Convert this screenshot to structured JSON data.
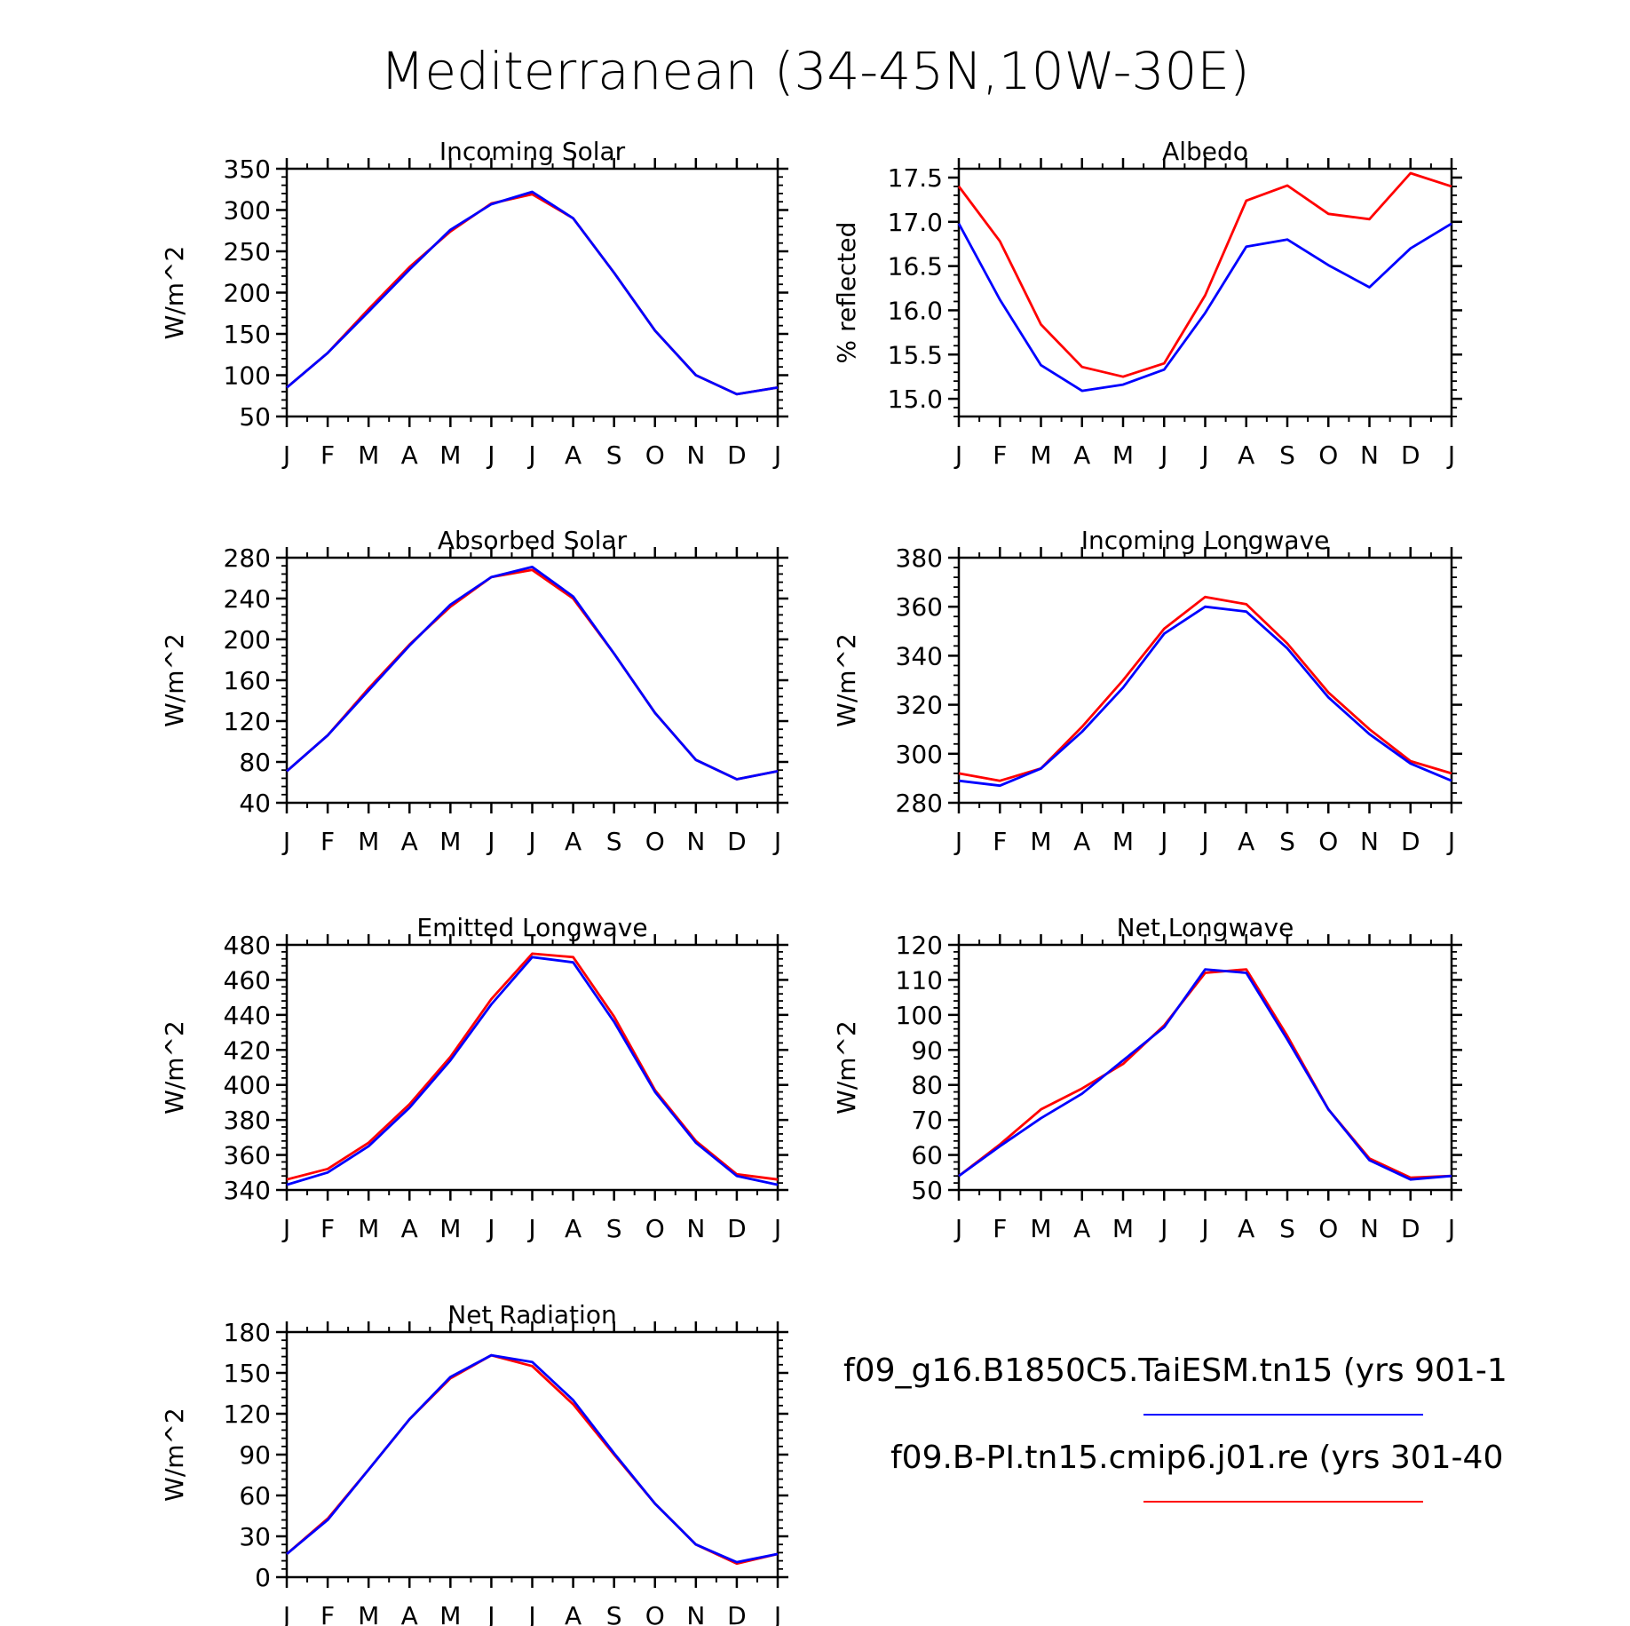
{
  "title": "Mediterranean (34-45N,10W-30E)",
  "months": [
    "J",
    "F",
    "M",
    "A",
    "M",
    "J",
    "J",
    "A",
    "S",
    "O",
    "N",
    "D",
    "J"
  ],
  "legend": [
    {
      "label": "f09_g16.B1850C5.TaiESM.tn15 (yrs 901-1",
      "color": "#0000ff"
    },
    {
      "label": "f09.B-PI.tn15.cmip6.j01.re (yrs 301-40",
      "color": "#ff0000"
    }
  ],
  "colors": {
    "series_blue": "#0000ff",
    "series_red": "#ff0000"
  },
  "chart_data": [
    {
      "type": "line",
      "title": "Incoming Solar",
      "ylabel": "W/m^2",
      "ylim": [
        50,
        350
      ],
      "yticks": [
        50,
        100,
        150,
        200,
        250,
        300,
        350
      ],
      "ytick_labels": [
        "50",
        "100",
        "150",
        "200",
        "250",
        "300",
        "350"
      ],
      "series": [
        {
          "color": "#ff0000",
          "values": [
            85,
            127,
            180,
            231,
            274,
            308,
            319,
            290,
            224,
            154,
            100,
            77,
            85
          ]
        },
        {
          "color": "#0000ff",
          "values": [
            85,
            127,
            177,
            228,
            276,
            307,
            322,
            290,
            224,
            154,
            100,
            77,
            85
          ]
        }
      ]
    },
    {
      "type": "line",
      "title": "Albedo",
      "ylabel": "% reflected",
      "ylim": [
        14.8,
        17.6
      ],
      "yticks": [
        15.0,
        15.5,
        16.0,
        16.5,
        17.0,
        17.5
      ],
      "ytick_labels": [
        "15.0",
        "15.5",
        "16.0",
        "16.5",
        "17.0",
        "17.5"
      ],
      "series": [
        {
          "color": "#ff0000",
          "values": [
            17.4,
            16.78,
            15.84,
            15.36,
            15.25,
            15.4,
            16.17,
            17.24,
            17.41,
            17.09,
            17.03,
            17.55,
            17.4
          ]
        },
        {
          "color": "#0000ff",
          "values": [
            16.98,
            16.12,
            15.38,
            15.09,
            15.16,
            15.33,
            15.97,
            16.72,
            16.8,
            16.51,
            16.26,
            16.7,
            16.98
          ]
        }
      ]
    },
    {
      "type": "line",
      "title": "Absorbed Solar",
      "ylabel": "W/m^2",
      "ylim": [
        40,
        280
      ],
      "yticks": [
        40,
        80,
        120,
        160,
        200,
        240,
        280
      ],
      "ytick_labels": [
        "40",
        "80",
        "120",
        "160",
        "200",
        "240",
        "280"
      ],
      "series": [
        {
          "color": "#ff0000",
          "values": [
            71,
            106,
            152,
            195,
            232,
            261,
            268,
            240,
            186,
            128,
            82,
            63,
            71
          ]
        },
        {
          "color": "#0000ff",
          "values": [
            71,
            106,
            150,
            194,
            234,
            261,
            271,
            242,
            186,
            128,
            82,
            63,
            71
          ]
        }
      ]
    },
    {
      "type": "line",
      "title": "Incoming Longwave",
      "ylabel": "W/m^2",
      "ylim": [
        280,
        380
      ],
      "yticks": [
        280,
        300,
        320,
        340,
        360,
        380
      ],
      "ytick_labels": [
        "280",
        "300",
        "320",
        "340",
        "360",
        "380"
      ],
      "series": [
        {
          "color": "#ff0000",
          "values": [
            292,
            289,
            294,
            311,
            330,
            351,
            364,
            361,
            345,
            325,
            310,
            297,
            292
          ]
        },
        {
          "color": "#0000ff",
          "values": [
            289,
            287,
            294,
            309,
            327,
            349,
            360,
            358,
            343,
            323,
            308,
            296,
            289
          ]
        }
      ]
    },
    {
      "type": "line",
      "title": "Emitted Longwave",
      "ylabel": "W/m^2",
      "ylim": [
        340,
        480
      ],
      "yticks": [
        340,
        360,
        380,
        400,
        420,
        440,
        460,
        480
      ],
      "ytick_labels": [
        "340",
        "360",
        "380",
        "400",
        "420",
        "440",
        "460",
        "480"
      ],
      "series": [
        {
          "color": "#ff0000",
          "values": [
            346,
            352,
            367,
            389,
            416,
            449,
            475,
            473,
            439,
            397,
            368,
            349,
            346
          ]
        },
        {
          "color": "#0000ff",
          "values": [
            343,
            350,
            365,
            387,
            414,
            446,
            473,
            470,
            436,
            396,
            367,
            348,
            343
          ]
        }
      ]
    },
    {
      "type": "line",
      "title": "Net Longwave",
      "ylabel": "W/m^2",
      "ylim": [
        50,
        120
      ],
      "yticks": [
        50,
        60,
        70,
        80,
        90,
        100,
        110,
        120
      ],
      "ytick_labels": [
        "50",
        "60",
        "70",
        "80",
        "90",
        "100",
        "110",
        "120"
      ],
      "series": [
        {
          "color": "#ff0000",
          "values": [
            54,
            63,
            73,
            79,
            86,
            97,
            112,
            113,
            94,
            73,
            59,
            53.5,
            54
          ]
        },
        {
          "color": "#0000ff",
          "values": [
            54,
            62.5,
            70.5,
            77.5,
            87,
            96.5,
            113,
            112,
            93,
            73,
            58.5,
            53,
            54
          ]
        }
      ]
    },
    {
      "type": "line",
      "title": "Net Radiation",
      "ylabel": "W/m^2",
      "ylim": [
        0,
        180
      ],
      "yticks": [
        0,
        30,
        60,
        90,
        120,
        150,
        180
      ],
      "ytick_labels": [
        "0",
        "30",
        "60",
        "90",
        "120",
        "150",
        "180"
      ],
      "series": [
        {
          "color": "#ff0000",
          "values": [
            17,
            43,
            79,
            116,
            146,
            163,
            155,
            127,
            90,
            54,
            24,
            10,
            17
          ]
        },
        {
          "color": "#0000ff",
          "values": [
            17,
            42,
            79,
            116,
            147,
            163,
            158,
            130,
            91,
            54,
            24,
            11,
            17
          ]
        }
      ]
    }
  ]
}
